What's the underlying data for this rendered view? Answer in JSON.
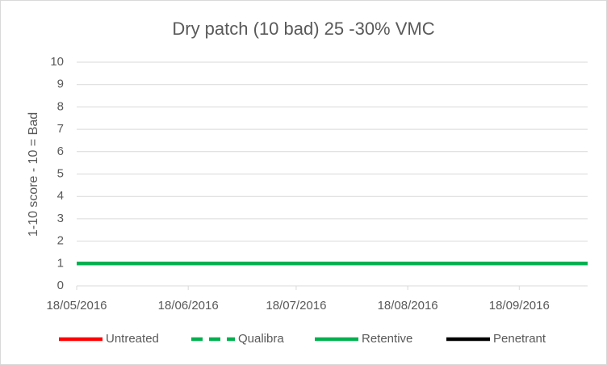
{
  "chart_data": {
    "type": "line",
    "title": "Dry patch (10 bad) 25 -30% VMC",
    "y_label": "1-10 score - 10 = Bad",
    "x": [
      "2016-05-18",
      "2016-06-18",
      "2016-07-18",
      "2016-08-18",
      "2016-09-18",
      "2016-10-07"
    ],
    "xlim": [
      "2016-05-18",
      "2016-10-07"
    ],
    "xticks": [
      {
        "value": "2016-05-18",
        "label": "18/05/2016"
      },
      {
        "value": "2016-06-18",
        "label": "18/06/2016"
      },
      {
        "value": "2016-07-18",
        "label": "18/07/2016"
      },
      {
        "value": "2016-08-18",
        "label": "18/08/2016"
      },
      {
        "value": "2016-09-18",
        "label": "18/09/2016"
      }
    ],
    "ylim": [
      0,
      10
    ],
    "yticks": [
      0,
      1,
      2,
      3,
      4,
      5,
      6,
      7,
      8,
      9,
      10
    ],
    "grid": true,
    "legend": "bottom",
    "series": [
      {
        "name": "Untreated",
        "color": "#ff0000",
        "line_style": "solid",
        "values": [
          1,
          1,
          1,
          1,
          1,
          1
        ]
      },
      {
        "name": "Qualibra",
        "color": "#00b050",
        "line_style": "dashed",
        "values": [
          1,
          1,
          1,
          1,
          1,
          1
        ]
      },
      {
        "name": "Retentive",
        "color": "#00b050",
        "line_style": "solid",
        "values": [
          1,
          1,
          1,
          1,
          1,
          1
        ]
      },
      {
        "name": "Penetrant",
        "color": "#000000",
        "line_style": "solid",
        "values": [
          null,
          null,
          null,
          null,
          null,
          null
        ]
      }
    ]
  }
}
